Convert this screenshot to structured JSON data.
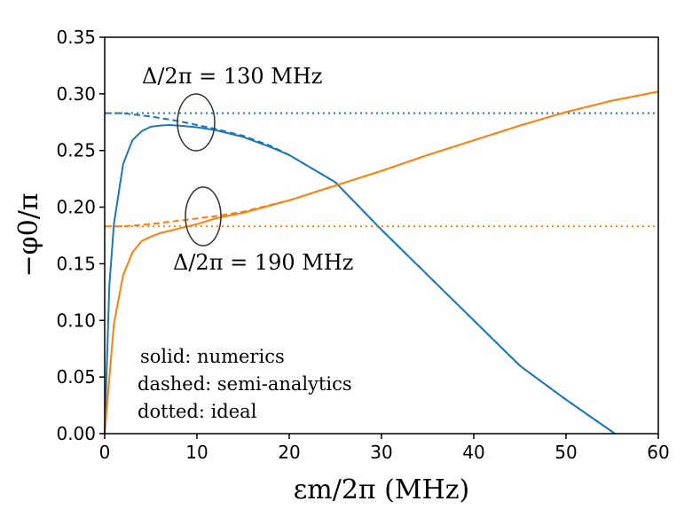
{
  "chart_data": {
    "type": "line",
    "xlabel": "εm/2π (MHz)",
    "ylabel": "−φ0/π",
    "xlim": [
      0,
      60
    ],
    "ylim": [
      0,
      0.35
    ],
    "x_ticks": [
      "0",
      "10",
      "20",
      "30",
      "40",
      "50",
      "60"
    ],
    "y_ticks": [
      "0.00",
      "0.05",
      "0.10",
      "0.15",
      "0.20",
      "0.25",
      "0.30",
      "0.35"
    ],
    "annotations": {
      "detuning_130": "Δ/2π = 130 MHz",
      "detuning_190": "Δ/2π = 190 MHz",
      "legend_solid": "solid: numerics",
      "legend_dashed": "dashed: semi-analytics",
      "legend_dotted": "dotted: ideal"
    },
    "series": [
      {
        "name": "Δ/2π = 130 MHz numerics",
        "color": "#1f77b4",
        "style": "solid",
        "x": [
          0,
          0.5,
          1,
          2,
          3,
          4,
          5,
          6,
          7,
          8,
          10,
          12,
          15,
          18,
          20,
          25,
          30,
          35,
          40,
          45,
          50,
          55.3
        ],
        "y": [
          0,
          0.13,
          0.185,
          0.238,
          0.259,
          0.267,
          0.271,
          0.272,
          0.2725,
          0.272,
          0.2705,
          0.268,
          0.262,
          0.253,
          0.246,
          0.222,
          0.18,
          0.14,
          0.1,
          0.06,
          0.03,
          0.0
        ]
      },
      {
        "name": "Δ/2π = 130 MHz semi-analytics",
        "color": "#1f77b4",
        "style": "dashed",
        "x": [
          0,
          2,
          5,
          8,
          10,
          12,
          15,
          18,
          20,
          25,
          30,
          35,
          40,
          45,
          50,
          55.3
        ],
        "y": [
          0.283,
          0.283,
          0.28,
          0.276,
          0.2725,
          0.269,
          0.263,
          0.254,
          0.246,
          0.222,
          0.18,
          0.14,
          0.1,
          0.06,
          0.03,
          0.0
        ]
      },
      {
        "name": "Δ/2π = 130 MHz ideal",
        "color": "#1f77b4",
        "style": "dotted",
        "x": [
          0,
          60
        ],
        "y": [
          0.283,
          0.283
        ]
      },
      {
        "name": "Δ/2π = 190 MHz numerics",
        "color": "#ff7f0e",
        "style": "solid",
        "x": [
          0,
          1,
          2,
          3,
          4,
          5,
          6,
          8,
          10,
          12,
          15,
          20,
          25,
          30,
          35,
          40,
          45,
          50,
          55,
          60
        ],
        "y": [
          0,
          0.097,
          0.14,
          0.16,
          0.17,
          0.174,
          0.177,
          0.181,
          0.185,
          0.19,
          0.195,
          0.206,
          0.219,
          0.232,
          0.246,
          0.259,
          0.272,
          0.284,
          0.294,
          0.302
        ]
      },
      {
        "name": "Δ/2π = 190 MHz semi-analytics",
        "color": "#ff7f0e",
        "style": "dashed",
        "x": [
          0,
          2,
          5,
          8,
          10,
          12,
          15,
          20,
          25,
          30,
          35,
          40,
          45,
          50,
          55,
          60
        ],
        "y": [
          0.183,
          0.183,
          0.185,
          0.188,
          0.19,
          0.192,
          0.196,
          0.206,
          0.219,
          0.232,
          0.246,
          0.259,
          0.272,
          0.284,
          0.294,
          0.302
        ]
      },
      {
        "name": "Δ/2π = 190 MHz ideal",
        "color": "#ff7f0e",
        "style": "dotted",
        "x": [
          0,
          60
        ],
        "y": [
          0.183,
          0.183
        ]
      }
    ]
  }
}
